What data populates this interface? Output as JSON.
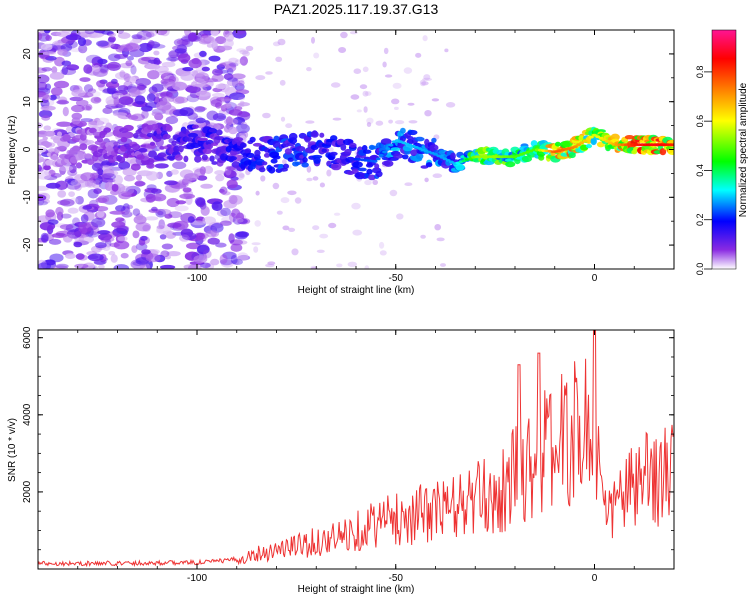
{
  "chart_data": [
    {
      "type": "heatmap",
      "title": "PAZ1.2025.117.19.37.G13",
      "xlabel": "Height of straight line (km)",
      "ylabel": "Frequency (Hz)",
      "xlim": [
        -140,
        20
      ],
      "ylim": [
        -25,
        25
      ],
      "x_ticks": [
        -100,
        -50,
        0
      ],
      "y_ticks": [
        -20,
        -10,
        0,
        10,
        20
      ],
      "colorbar": {
        "label": "Normalized spectral amplitude",
        "range": [
          0.0,
          0.97
        ],
        "ticks": [
          0.0,
          0.2,
          0.4,
          0.6,
          0.8
        ],
        "colormap": "rainbow",
        "colors": [
          "#ffffff",
          "#8a2be2",
          "#0000ff",
          "#00ffff",
          "#00ff00",
          "#ffff00",
          "#ff8000",
          "#ff0000",
          "#ff1493"
        ]
      },
      "ridge": {
        "description_free": true,
        "x": [
          -140,
          -120,
          -110,
          -100,
          -90,
          -80,
          -70,
          -60,
          -55,
          -50,
          -45,
          -40,
          -35,
          -30,
          -25,
          -20,
          -15,
          -10,
          -5,
          0,
          5,
          10,
          15,
          20
        ],
        "y": [
          0,
          1,
          1.5,
          1.5,
          -1,
          -1,
          0,
          -2,
          -2.5,
          2,
          0.5,
          -1,
          -3,
          -1.5,
          -1.5,
          -1.5,
          0,
          -0.5,
          0.5,
          3,
          1,
          1,
          1,
          1
        ],
        "peak_amplitude": [
          0.05,
          0.1,
          0.15,
          0.18,
          0.2,
          0.25,
          0.22,
          0.22,
          0.25,
          0.3,
          0.3,
          0.28,
          0.3,
          0.55,
          0.55,
          0.5,
          0.5,
          0.8,
          0.75,
          0.6,
          0.7,
          0.85,
          0.9,
          0.85
        ]
      }
    },
    {
      "type": "line",
      "xlabel": "Height of straight line (km)",
      "ylabel": "SNR (10 * v/v)",
      "xlim": [
        -140,
        20
      ],
      "ylim": [
        0,
        6200
      ],
      "x_ticks": [
        -100,
        -50,
        0
      ],
      "y_ticks": [
        2000,
        4000,
        6000
      ],
      "series": [
        {
          "color": "#ee3333",
          "x": [
            -140,
            -130,
            -120,
            -110,
            -100,
            -95,
            -90,
            -85,
            -80,
            -75,
            -70,
            -65,
            -60,
            -55,
            -50,
            -45,
            -40,
            -35,
            -30,
            -25,
            -22,
            -20,
            -19,
            -18,
            -15,
            -14,
            -13,
            -10,
            -5,
            -2,
            0,
            1,
            2,
            3,
            5,
            8,
            10,
            15,
            20
          ],
          "y": [
            150,
            140,
            150,
            160,
            170,
            200,
            250,
            400,
            500,
            600,
            700,
            800,
            1000,
            1200,
            1300,
            1400,
            1500,
            1600,
            1800,
            1900,
            2100,
            2500,
            5300,
            2600,
            2800,
            5600,
            3000,
            3200,
            3500,
            3800,
            6200,
            2800,
            1800,
            1200,
            1700,
            2000,
            2100,
            2400,
            2500
          ]
        }
      ]
    }
  ]
}
